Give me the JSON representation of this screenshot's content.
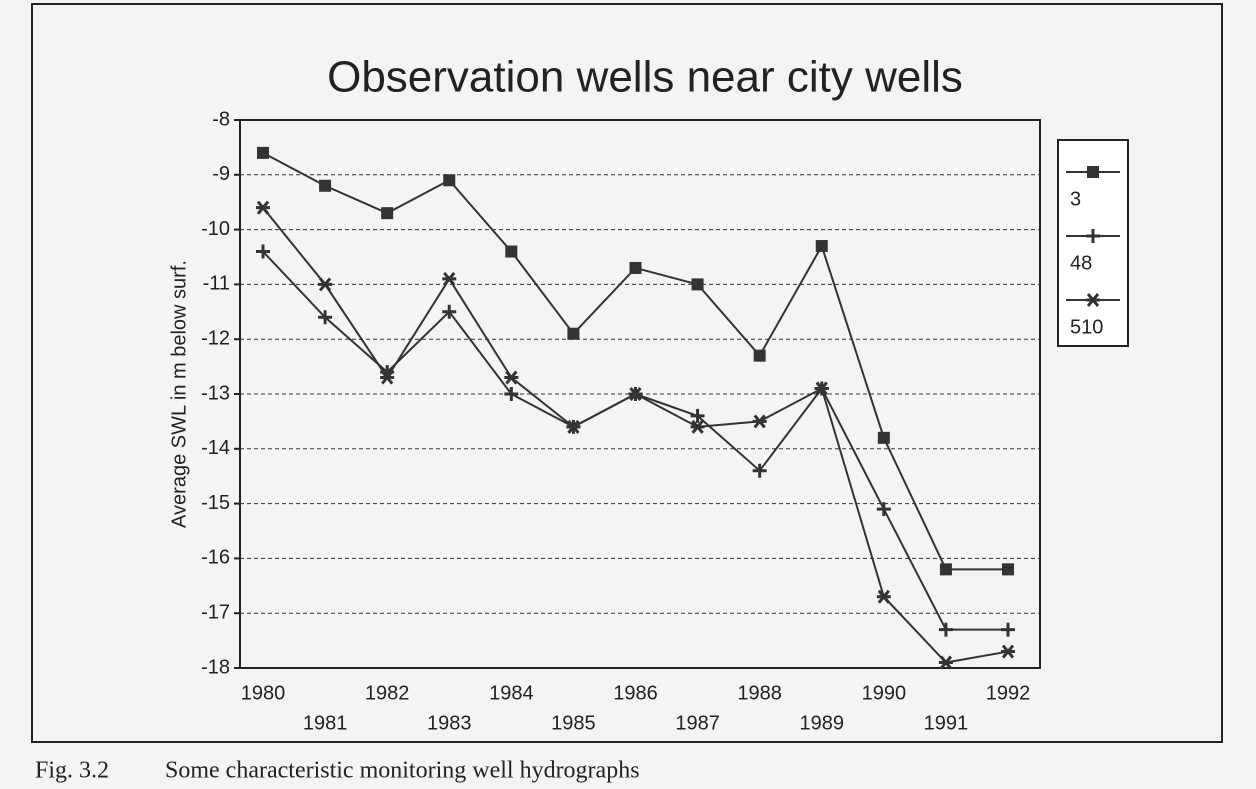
{
  "chart_data": {
    "type": "line",
    "title": "Observation wells near city wells",
    "y_label": "Average SWL in m below surf.",
    "categories": [
      "1980",
      "1981",
      "1982",
      "1983",
      "1984",
      "1985",
      "1986",
      "1987",
      "1988",
      "1989",
      "1990",
      "1991",
      "1992"
    ],
    "series": [
      {
        "name": "3",
        "color": "#333333",
        "marker": "square",
        "values": [
          -8.6,
          -9.2,
          -9.7,
          -9.1,
          -10.4,
          -11.9,
          -10.7,
          -11.0,
          -12.3,
          -10.3,
          -13.8,
          -16.2,
          -16.2
        ]
      },
      {
        "name": "48",
        "color": "#333333",
        "marker": "plus",
        "values": [
          -10.4,
          -11.6,
          -12.6,
          -11.5,
          -13.0,
          -13.6,
          -13.0,
          -13.4,
          -14.4,
          -12.9,
          -15.1,
          -17.3,
          -17.3
        ]
      },
      {
        "name": "510",
        "color": "#333333",
        "marker": "star",
        "values": [
          -9.6,
          -11.0,
          -12.7,
          -10.9,
          -12.7,
          -13.6,
          -13.0,
          -13.6,
          -13.5,
          -12.9,
          -16.7,
          -17.9,
          -17.7
        ]
      }
    ],
    "ylim": [
      -18,
      -8
    ],
    "yticks": [
      -18,
      -17,
      -16,
      -15,
      -14,
      -13,
      -12,
      -11,
      -10,
      -9,
      -8
    ],
    "grid": true,
    "legend": "right"
  },
  "caption": {
    "label": "Fig. 3.2",
    "text": "Some characteristic monitoring well hydrographs"
  }
}
